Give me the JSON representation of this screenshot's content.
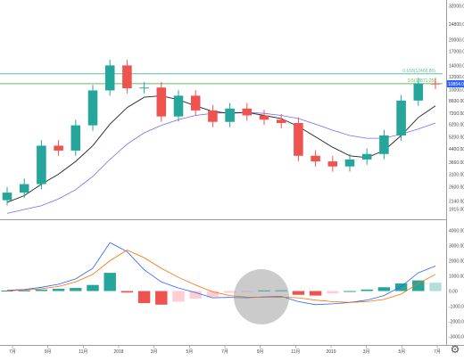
{
  "chart_data": {
    "type": "line",
    "title": "",
    "price_axis": {
      "scale": "log",
      "range": [
        1700,
        33000
      ],
      "ticks": [
        "32000.00",
        "24800.00",
        "20000.00",
        "17000.00",
        "14000.00",
        "12000.00",
        "10000.00",
        "8600.00",
        "7200.00",
        "6200.00",
        "5200.00",
        "4400.00",
        "3660.00",
        "3100.00",
        "2600.00",
        "2140.00",
        "1915.00"
      ]
    },
    "levels": [
      {
        "label": "0.618(12466.86)",
        "value": 12466.86,
        "color": "#5fbf9f"
      },
      {
        "label": "0.5(10871.25)",
        "value": 10871.25,
        "color": "#5fbf5f"
      }
    ],
    "last_price": {
      "label": "10854.00",
      "value": 10854,
      "color": "#2962ff"
    },
    "price_series": {
      "x": [
        "2017-06",
        "2017-07",
        "2017-08",
        "2017-09",
        "2017-10",
        "2017-11",
        "2017-12",
        "2018-01",
        "2018-02",
        "2018-03",
        "2018-04",
        "2018-05",
        "2018-06",
        "2018-07",
        "2018-08",
        "2018-09",
        "2018-10",
        "2018-11",
        "2018-12",
        "2019-01",
        "2019-02",
        "2019-03",
        "2019-04",
        "2019-05",
        "2019-06",
        "2019-07"
      ],
      "close": [
        2400,
        2700,
        4600,
        4300,
        6100,
        9900,
        14000,
        10200,
        10300,
        6900,
        9200,
        7500,
        6400,
        7700,
        7000,
        6600,
        6300,
        4000,
        3700,
        3450,
        3800,
        4100,
        5300,
        8600,
        10900,
        10850
      ],
      "ma_fast": [
        2100,
        2300,
        2700,
        3100,
        3700,
        4600,
        6200,
        7800,
        9000,
        9200,
        8700,
        8000,
        7400,
        7200,
        7300,
        7000,
        6700,
        6000,
        5200,
        4500,
        4000,
        3900,
        4300,
        5300,
        6800,
        8000
      ],
      "ma_slow": [
        1800,
        1900,
        2000,
        2200,
        2500,
        3000,
        3800,
        4700,
        5500,
        6100,
        6600,
        7000,
        7200,
        7300,
        7300,
        7200,
        7000,
        6700,
        6200,
        5700,
        5300,
        5100,
        5100,
        5400,
        5800,
        6300
      ]
    },
    "macd_axis": {
      "range": [
        -3500,
        4500
      ],
      "ticks": [
        "4000.00",
        "3000.00",
        "2000.00",
        "1000.00",
        "0.00",
        "-1000.00",
        "-2000.00",
        "-3000.00"
      ]
    },
    "macd_series": {
      "x": [
        "2017-06",
        "2017-07",
        "2017-08",
        "2017-09",
        "2017-10",
        "2017-11",
        "2017-12",
        "2018-01",
        "2018-02",
        "2018-03",
        "2018-04",
        "2018-05",
        "2018-06",
        "2018-07",
        "2018-08",
        "2018-09",
        "2018-10",
        "2018-11",
        "2018-12",
        "2019-01",
        "2019-02",
        "2019-03",
        "2019-04",
        "2019-05",
        "2019-06",
        "2019-07"
      ],
      "macd": [
        50,
        100,
        250,
        450,
        800,
        1500,
        3200,
        2600,
        1400,
        600,
        200,
        -100,
        -450,
        -420,
        -450,
        -380,
        -350,
        -700,
        -900,
        -850,
        -750,
        -600,
        -300,
        300,
        1200,
        1650
      ],
      "signal": [
        20,
        60,
        150,
        300,
        600,
        1100,
        2000,
        2700,
        2200,
        1500,
        900,
        400,
        -50,
        -300,
        -400,
        -420,
        -400,
        -450,
        -600,
        -700,
        -750,
        -700,
        -550,
        -200,
        500,
        1100
      ],
      "histogram": [
        30,
        40,
        100,
        150,
        200,
        400,
        1200,
        -100,
        -800,
        -900,
        -700,
        -500,
        -400,
        -120,
        -50,
        40,
        50,
        -250,
        -300,
        -150,
        0,
        100,
        250,
        500,
        700,
        550
      ]
    },
    "x_ticks": [
      "7月",
      "9月",
      "11月",
      "2018",
      "3月",
      "5月",
      "7月",
      "9月",
      "11月",
      "2019",
      "3月",
      "5月",
      "7月"
    ],
    "grid": false,
    "legend": "none"
  },
  "toolbar": {
    "settings_icon": "gear-icon",
    "settings_glyph": "⚙"
  }
}
